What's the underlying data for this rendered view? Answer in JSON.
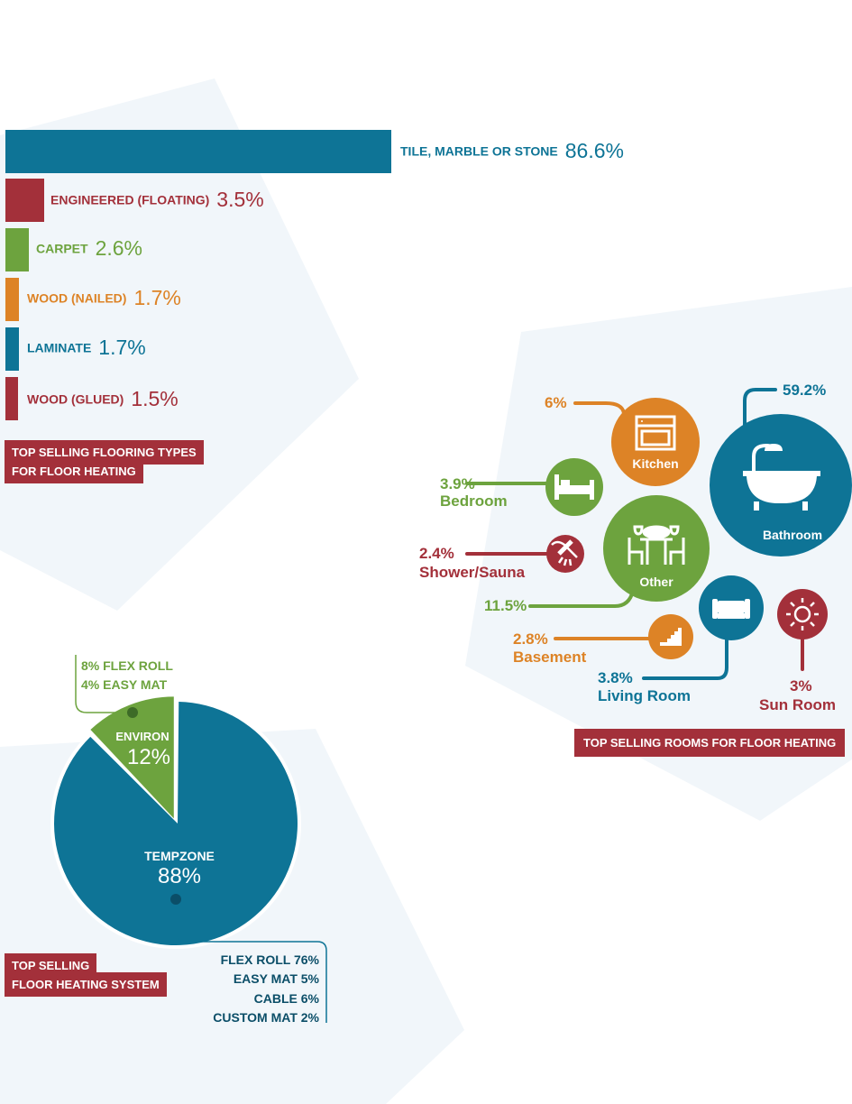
{
  "colors": {
    "teal": "#0e7496",
    "red": "#a3303a",
    "green": "#6da33e",
    "orange": "#dd8326",
    "shape": "#f1f6fa"
  },
  "chart_data": [
    {
      "type": "bar",
      "title": "TOP SELLING FLOORING TYPES FOR FLOOR HEATING",
      "title_lines": [
        "TOP SELLING FLOORING TYPES",
        "FOR FLOOR HEATING"
      ],
      "categories": [
        "TILE, MARBLE OR STONE",
        "ENGINEERED (FLOATING)",
        "CARPET",
        "WOOD (NAILED)",
        "LAMINATE",
        "WOOD (GLUED)"
      ],
      "values": [
        86.6,
        3.5,
        2.6,
        1.7,
        1.7,
        1.5
      ],
      "value_labels": [
        "86.6%",
        "3.5%",
        "2.6%",
        "1.7%",
        "1.7%",
        "1.5%"
      ],
      "bar_colors": [
        "#0e7496",
        "#a3303a",
        "#6da33e",
        "#dd8326",
        "#0e7496",
        "#a3303a"
      ],
      "orientation": "horizontal"
    },
    {
      "type": "bubble",
      "title": "TOP SELLING ROOMS FOR FLOOR HEATING",
      "rooms": [
        {
          "name": "Bathroom",
          "value": 59.2,
          "label": "59.2%",
          "color": "#0e7496",
          "icon": "bathtub-icon",
          "name_in_circle": true
        },
        {
          "name": "Other",
          "value": 11.5,
          "label": "11.5%",
          "color": "#6da33e",
          "icon": "dining-table-icon",
          "name_in_circle": true
        },
        {
          "name": "Kitchen",
          "value": 6,
          "label": "6%",
          "color": "#dd8326",
          "icon": "oven-icon",
          "name_in_circle": true
        },
        {
          "name": "Bedroom",
          "value": 3.9,
          "label": "3.9%",
          "color": "#6da33e",
          "icon": "bed-icon",
          "name_in_circle": false
        },
        {
          "name": "Living Room",
          "value": 3.8,
          "label": "3.8%",
          "color": "#0e7496",
          "icon": "sofa-icon",
          "name_in_circle": false
        },
        {
          "name": "Sun Room",
          "value": 3,
          "label": "3%",
          "color": "#a3303a",
          "icon": "sun-icon",
          "name_in_circle": false
        },
        {
          "name": "Basement",
          "value": 2.8,
          "label": "2.8%",
          "color": "#dd8326",
          "icon": "stairs-icon",
          "name_in_circle": false
        },
        {
          "name": "Shower/Sauna",
          "value": 2.4,
          "label": "2.4%",
          "color": "#a3303a",
          "icon": "shower-icon",
          "name_in_circle": false
        }
      ]
    },
    {
      "type": "pie",
      "title": "TOP SELLING FLOOR HEATING SYSTEM",
      "title_lines": [
        "TOP SELLING",
        "FLOOR HEATING SYSTEM"
      ],
      "slices": [
        {
          "name": "TEMPZONE",
          "value": 88,
          "label": "88%",
          "color": "#0e7496",
          "breakdown": [
            "FLEX ROLL 76%",
            "EASY MAT 5%",
            "CABLE 6%",
            "CUSTOM MAT 2%"
          ]
        },
        {
          "name": "ENVIRON",
          "value": 12,
          "label": "12%",
          "color": "#6da33e",
          "breakdown": [
            "8% FLEX ROLL",
            "4% EASY MAT"
          ]
        }
      ]
    }
  ]
}
